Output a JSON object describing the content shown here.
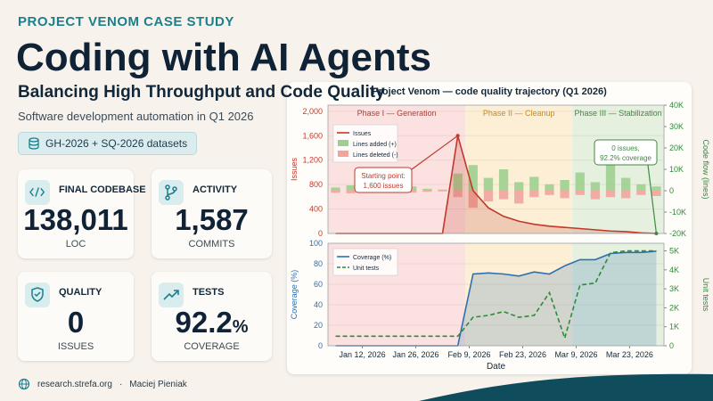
{
  "header": {
    "kicker": "PROJECT VENOM CASE STUDY",
    "title": "Coding with AI Agents",
    "subtitle": "Balancing High Throughput and Code Quality",
    "tagline": "Software development automation in Q1 2026",
    "badge": "GH-2026 + SQ-2026 datasets"
  },
  "cards": [
    {
      "label": "FINAL CODEBASE",
      "value": "138,011",
      "unit": "LOC"
    },
    {
      "label": "ACTIVITY",
      "value": "1,587",
      "unit": "COMMITS"
    },
    {
      "label": "QUALITY",
      "value": "0",
      "unit": "ISSUES"
    },
    {
      "label": "TESTS",
      "value": "92.2",
      "suffix": "%",
      "unit": "COVERAGE"
    }
  ],
  "footer": {
    "site": "research.strefa.org",
    "separator": "·",
    "author": "Maciej Pieniak"
  },
  "panel_title": "Project Venom — code quality trajectory (Q1 2026)",
  "chart_data": [
    {
      "type": "combo",
      "ylabel": "Issues",
      "y2label": "Code flow (lines)",
      "x": [
        "2026-01-05",
        "2026-01-09",
        "2026-01-13",
        "2026-01-17",
        "2026-01-21",
        "2026-01-25",
        "2026-01-29",
        "2026-02-02",
        "2026-02-06",
        "2026-02-10",
        "2026-02-14",
        "2026-02-18",
        "2026-02-22",
        "2026-02-26",
        "2026-03-02",
        "2026-03-06",
        "2026-03-10",
        "2026-03-14",
        "2026-03-18",
        "2026-03-22",
        "2026-03-26",
        "2026-03-30"
      ],
      "xlim": [
        "2026-01-03",
        "2026-04-01"
      ],
      "ylim": [
        0,
        2100
      ],
      "yticks": [
        0,
        400,
        800,
        {
          "value": 1200,
          "label": "1,200"
        },
        {
          "value": 1600,
          "label": "1,600"
        },
        {
          "value": 2000,
          "label": "2,000"
        }
      ],
      "y2lim": [
        -20000,
        40000
      ],
      "y2ticks": [
        {
          "value": -20000,
          "label": "-20K"
        },
        {
          "value": -10000,
          "label": "-10K"
        },
        0,
        {
          "value": 10000,
          "label": "10K"
        },
        {
          "value": 20000,
          "label": "20K"
        },
        {
          "value": 30000,
          "label": "30K"
        },
        {
          "value": 40000,
          "label": "40K"
        }
      ],
      "grid": true,
      "legend": "upper left",
      "phases": [
        {
          "label": "Phase I — Generation",
          "start": "2026-01-03",
          "end": "2026-02-08",
          "color": "#fbe1df",
          "label_color": "#c0392b"
        },
        {
          "label": "Phase II — Cleanup",
          "start": "2026-02-08",
          "end": "2026-03-08",
          "color": "#fcefd6",
          "label_color": "#c98a1e"
        },
        {
          "label": "Phase III — Stabilization",
          "start": "2026-03-08",
          "end": "2026-04-01",
          "color": "#e5f0df",
          "label_color": "#3f8a3f"
        }
      ],
      "series": [
        {
          "name": "Lines added (+)",
          "kind": "bar",
          "axis": "y2",
          "color": "#9fcf8f",
          "values": [
            1500,
            2500,
            1200,
            2200,
            1000,
            2000,
            900,
            500,
            8000,
            12000,
            6000,
            10000,
            4000,
            6500,
            3000,
            5000,
            8500,
            4000,
            12000,
            6000,
            3000,
            2000
          ]
        },
        {
          "name": "Lines deleted (-)",
          "kind": "bar",
          "axis": "y2",
          "color": "#f2a49d",
          "values": [
            -1000,
            -1200,
            -800,
            -1000,
            -700,
            -900,
            -500,
            -300,
            -3000,
            -8000,
            -5000,
            -4000,
            -6000,
            -3000,
            -2000,
            -3500,
            -2000,
            -4000,
            -3000,
            -3500,
            -2000,
            -2500
          ]
        },
        {
          "name": "Issues",
          "kind": "line",
          "axis": "y",
          "color": "#c0392b",
          "fill": true,
          "values": [
            0,
            0,
            0,
            0,
            0,
            0,
            0,
            0,
            1600,
            700,
            420,
            280,
            200,
            150,
            120,
            100,
            80,
            60,
            40,
            30,
            10,
            0
          ]
        }
      ],
      "annotations": [
        {
          "lines": [
            "Starting point:",
            "1,600 issues"
          ],
          "x": "2026-02-06",
          "y": 1600,
          "color": "#c0392b"
        },
        {
          "lines": [
            "0 issues,",
            "92.2% coverage"
          ],
          "x": "2026-03-30",
          "y": 0,
          "color": "#3f8a3f"
        }
      ]
    },
    {
      "type": "line",
      "ylabel": "Coverage (%)",
      "y2label": "Unit tests",
      "xlabel": "Date",
      "x": [
        "2026-01-05",
        "2026-01-09",
        "2026-01-13",
        "2026-01-17",
        "2026-01-21",
        "2026-01-25",
        "2026-01-29",
        "2026-02-02",
        "2026-02-06",
        "2026-02-10",
        "2026-02-14",
        "2026-02-18",
        "2026-02-22",
        "2026-02-26",
        "2026-03-02",
        "2026-03-06",
        "2026-03-10",
        "2026-03-14",
        "2026-03-18",
        "2026-03-22",
        "2026-03-26",
        "2026-03-30"
      ],
      "xlim": [
        "2026-01-03",
        "2026-04-01"
      ],
      "xticks": [
        {
          "value": "2026-01-12",
          "label": "Jan 12, 2026"
        },
        {
          "value": "2026-01-26",
          "label": "Jan 26, 2026"
        },
        {
          "value": "2026-02-09",
          "label": "Feb 9, 2026"
        },
        {
          "value": "2026-02-23",
          "label": "Feb 23, 2026"
        },
        {
          "value": "2026-03-09",
          "label": "Mar 9, 2026"
        },
        {
          "value": "2026-03-23",
          "label": "Mar 23, 2026"
        }
      ],
      "ylim": [
        0,
        100
      ],
      "yticks": [
        0,
        20,
        40,
        60,
        80,
        100
      ],
      "y2lim": [
        0,
        5400
      ],
      "y2ticks": [
        0,
        {
          "value": 1000,
          "label": "1K"
        },
        {
          "value": 2000,
          "label": "2K"
        },
        {
          "value": 3000,
          "label": "3K"
        },
        {
          "value": 4000,
          "label": "4K"
        },
        {
          "value": 5000,
          "label": "5K"
        }
      ],
      "grid": true,
      "legend": "upper left",
      "series": [
        {
          "name": "Coverage (%)",
          "kind": "line",
          "axis": "y",
          "color": "#2e6fb0",
          "fill": true,
          "values": [
            0,
            0,
            0,
            0,
            0,
            0,
            0,
            0,
            0,
            70,
            71,
            70,
            68,
            72,
            70,
            78,
            84,
            84,
            90,
            91,
            91,
            92.2
          ]
        },
        {
          "name": "Unit tests",
          "kind": "line",
          "axis": "y2",
          "color": "#2f8a3a",
          "style": "dashed",
          "values": [
            500,
            500,
            500,
            500,
            500,
            500,
            500,
            500,
            500,
            1500,
            1600,
            1800,
            1500,
            1600,
            2800,
            400,
            3200,
            3300,
            4900,
            5000,
            5000,
            5000
          ]
        }
      ]
    }
  ]
}
